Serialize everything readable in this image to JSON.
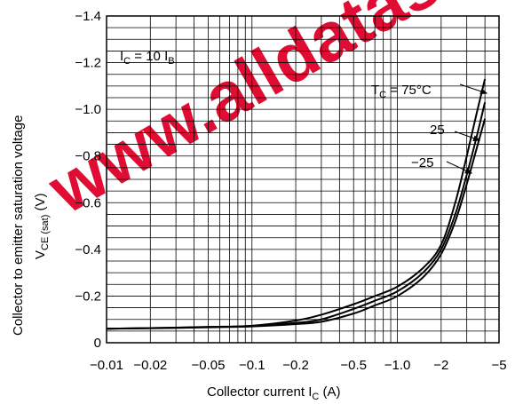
{
  "watermark": {
    "text": "www.alldatasheet.com",
    "color": "#e0002a"
  },
  "chart_data": {
    "type": "line",
    "xlabel": {
      "main": "Collector current  I",
      "sub": "C",
      "unit": "  (A)"
    },
    "ylabel": {
      "line1": "Collector to emitter saturation voltage",
      "main": "V",
      "sub": "CE (sat)",
      "unit": "   (V)"
    },
    "x_scale": "log",
    "xlim": [
      -0.01,
      -5
    ],
    "ylim": [
      0,
      -1.4
    ],
    "x_ticks": [
      {
        "value": -0.01,
        "label": "−0.01"
      },
      {
        "value": -0.02,
        "label": "−0.02"
      },
      {
        "value": -0.05,
        "label": "−0.05"
      },
      {
        "value": -0.1,
        "label": "−0.1"
      },
      {
        "value": -0.2,
        "label": "−0.2"
      },
      {
        "value": -0.5,
        "label": "−0.5"
      },
      {
        "value": -1.0,
        "label": "−1.0"
      },
      {
        "value": -2,
        "label": "−2"
      },
      {
        "value": -5,
        "label": "−5"
      }
    ],
    "y_ticks": [
      {
        "value": 0,
        "label": "0"
      },
      {
        "value": -0.2,
        "label": "−0.2"
      },
      {
        "value": -0.4,
        "label": "−0.4"
      },
      {
        "value": -0.6,
        "label": "−0.6"
      },
      {
        "value": -0.8,
        "label": "−0.8"
      },
      {
        "value": -1.0,
        "label": "−1.0"
      },
      {
        "value": -1.2,
        "label": "−1.2"
      },
      {
        "value": -1.4,
        "label": "−1.4"
      }
    ],
    "grid": true,
    "condition": {
      "main": "I",
      "sub1": "C",
      "mid": " = 10 I",
      "sub2": "B"
    },
    "series": [
      {
        "name": "T_C = 75°C",
        "x": [
          -0.01,
          -0.02,
          -0.05,
          -0.1,
          -0.2,
          -0.3,
          -0.5,
          -0.7,
          -1.0,
          -1.5,
          -2.0,
          -2.5,
          -3.0,
          -3.5,
          -4.0
        ],
        "y": [
          -0.06,
          -0.063,
          -0.068,
          -0.073,
          -0.095,
          -0.12,
          -0.165,
          -0.2,
          -0.24,
          -0.32,
          -0.42,
          -0.6,
          -0.8,
          -0.98,
          -1.13
        ]
      },
      {
        "name": "25",
        "x": [
          -0.01,
          -0.02,
          -0.05,
          -0.1,
          -0.2,
          -0.3,
          -0.5,
          -0.7,
          -1.0,
          -1.5,
          -2.0,
          -2.5,
          -3.0,
          -3.5,
          -4.0
        ],
        "y": [
          -0.06,
          -0.063,
          -0.067,
          -0.072,
          -0.085,
          -0.1,
          -0.145,
          -0.18,
          -0.22,
          -0.3,
          -0.4,
          -0.55,
          -0.72,
          -0.88,
          -1.03
        ]
      },
      {
        "name": "−25",
        "x": [
          -0.01,
          -0.02,
          -0.05,
          -0.1,
          -0.2,
          -0.3,
          -0.5,
          -0.7,
          -1.0,
          -1.5,
          -2.0,
          -2.5,
          -3.0,
          -3.5,
          -4.0
        ],
        "y": [
          -0.06,
          -0.062,
          -0.066,
          -0.07,
          -0.08,
          -0.09,
          -0.125,
          -0.16,
          -0.2,
          -0.28,
          -0.38,
          -0.52,
          -0.68,
          -0.83,
          -0.96
        ]
      }
    ],
    "legend_labels": [
      {
        "main": "T",
        "sub": "C",
        "rest": " = 75°C"
      },
      {
        "main": "25",
        "sub": "",
        "rest": ""
      },
      {
        "main": "−25",
        "sub": "",
        "rest": ""
      }
    ]
  }
}
